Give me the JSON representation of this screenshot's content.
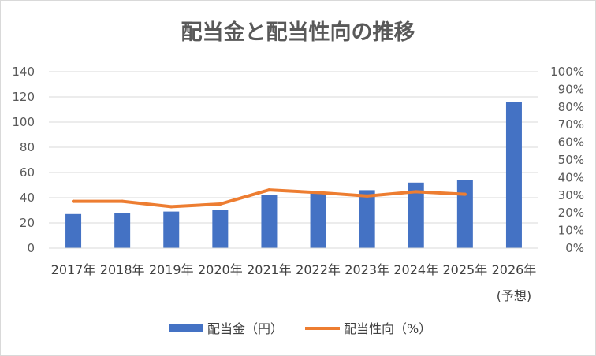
{
  "chart_data": {
    "type": "bar",
    "title": "配当金と配当性向の推移",
    "categories": [
      "2017年",
      "2018年",
      "2019年",
      "2020年",
      "2021年",
      "2022年",
      "2023年",
      "2024年",
      "2025年",
      "2026年"
    ],
    "category_notes": [
      "",
      "",
      "",
      "",
      "",
      "",
      "",
      "",
      "",
      "(予想)"
    ],
    "series": [
      {
        "name": "配当金（円）",
        "type": "bar",
        "axis": "left",
        "color": "#4472C4",
        "values": [
          27,
          28,
          29,
          30,
          42,
          44,
          46,
          52,
          54,
          116
        ]
      },
      {
        "name": "配当性向（%）",
        "type": "line",
        "axis": "right",
        "color": "#ED7D31",
        "values": [
          26.5,
          26.5,
          23.5,
          25,
          33,
          31.5,
          29.5,
          32,
          30.5,
          null
        ]
      }
    ],
    "y_left": {
      "min": 0,
      "max": 140,
      "step": 20,
      "tick_labels": [
        "0",
        "20",
        "40",
        "60",
        "80",
        "100",
        "120",
        "140"
      ]
    },
    "y_right": {
      "min": 0,
      "max": 100,
      "step": 10,
      "tick_labels": [
        "0%",
        "10%",
        "20%",
        "30%",
        "40%",
        "50%",
        "60%",
        "70%",
        "80%",
        "90%",
        "100%"
      ]
    },
    "grid": true,
    "legend_position": "bottom"
  }
}
